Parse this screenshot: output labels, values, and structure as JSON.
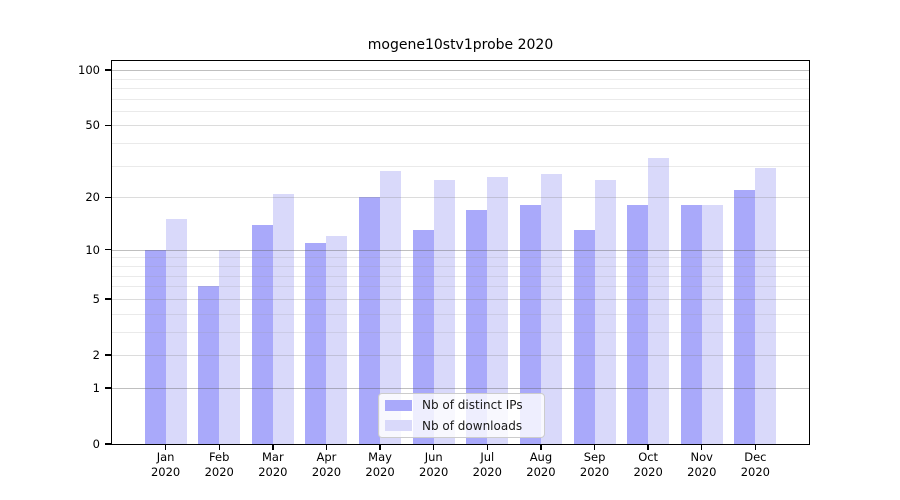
{
  "chart_data": {
    "type": "bar",
    "title": "mogene10stv1probe 2020",
    "xlabel": "",
    "ylabel": "",
    "y_scale": "log(1+x)",
    "ylim": [
      0,
      112
    ],
    "grid": "on",
    "legend_position": "bottom-center",
    "y_tick_labels": [
      0,
      1,
      2,
      5,
      10,
      20,
      50,
      100
    ],
    "y_decade_lines": [
      1,
      10,
      100
    ],
    "y_major_lines": [
      2,
      5,
      20,
      50
    ],
    "y_minor_lines": [
      3,
      4,
      6,
      7,
      8,
      9,
      30,
      40,
      60,
      70,
      80,
      90
    ],
    "categories": [
      {
        "month": "Jan",
        "year": "2020"
      },
      {
        "month": "Feb",
        "year": "2020"
      },
      {
        "month": "Mar",
        "year": "2020"
      },
      {
        "month": "Apr",
        "year": "2020"
      },
      {
        "month": "May",
        "year": "2020"
      },
      {
        "month": "Jun",
        "year": "2020"
      },
      {
        "month": "Jul",
        "year": "2020"
      },
      {
        "month": "Aug",
        "year": "2020"
      },
      {
        "month": "Sep",
        "year": "2020"
      },
      {
        "month": "Oct",
        "year": "2020"
      },
      {
        "month": "Nov",
        "year": "2020"
      },
      {
        "month": "Dec",
        "year": "2020"
      }
    ],
    "series": [
      {
        "name": "Nb of distinct IPs",
        "color": "#a9a9fa",
        "values": [
          10,
          6,
          14,
          11,
          20,
          13,
          17,
          18,
          13,
          18,
          18,
          22
        ]
      },
      {
        "name": "Nb of downloads",
        "color": "#d9d9fa",
        "values": [
          15,
          10,
          21,
          12,
          28,
          25,
          26,
          27,
          25,
          33,
          18,
          29
        ]
      }
    ]
  }
}
